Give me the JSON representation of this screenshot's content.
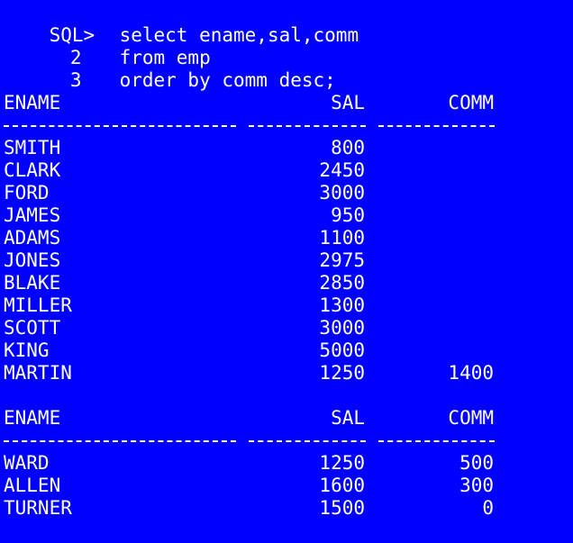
{
  "query": {
    "prompt": "SQL>",
    "line1": "select ename,sal,comm",
    "line2_num": "2",
    "line2": "from emp",
    "line3_num": "3",
    "line3": "order by comm desc;"
  },
  "blocks": [
    {
      "headers": {
        "ename": "ENAME",
        "sal": "SAL",
        "comm": "COMM"
      },
      "rows": [
        {
          "ename": "SMITH",
          "sal": "800",
          "comm": ""
        },
        {
          "ename": "CLARK",
          "sal": "2450",
          "comm": ""
        },
        {
          "ename": "FORD",
          "sal": "3000",
          "comm": ""
        },
        {
          "ename": "JAMES",
          "sal": "950",
          "comm": ""
        },
        {
          "ename": "ADAMS",
          "sal": "1100",
          "comm": ""
        },
        {
          "ename": "JONES",
          "sal": "2975",
          "comm": ""
        },
        {
          "ename": "BLAKE",
          "sal": "2850",
          "comm": ""
        },
        {
          "ename": "MILLER",
          "sal": "1300",
          "comm": ""
        },
        {
          "ename": "SCOTT",
          "sal": "3000",
          "comm": ""
        },
        {
          "ename": "KING",
          "sal": "5000",
          "comm": ""
        },
        {
          "ename": "MARTIN",
          "sal": "1250",
          "comm": "1400"
        }
      ]
    },
    {
      "headers": {
        "ename": "ENAME",
        "sal": "SAL",
        "comm": "COMM"
      },
      "rows": [
        {
          "ename": "WARD",
          "sal": "1250",
          "comm": "500"
        },
        {
          "ename": "ALLEN",
          "sal": "1600",
          "comm": "300"
        },
        {
          "ename": "TURNER",
          "sal": "1500",
          "comm": "0"
        }
      ]
    }
  ],
  "colors": {
    "background": "#0000ff",
    "text": "#ffffff"
  }
}
